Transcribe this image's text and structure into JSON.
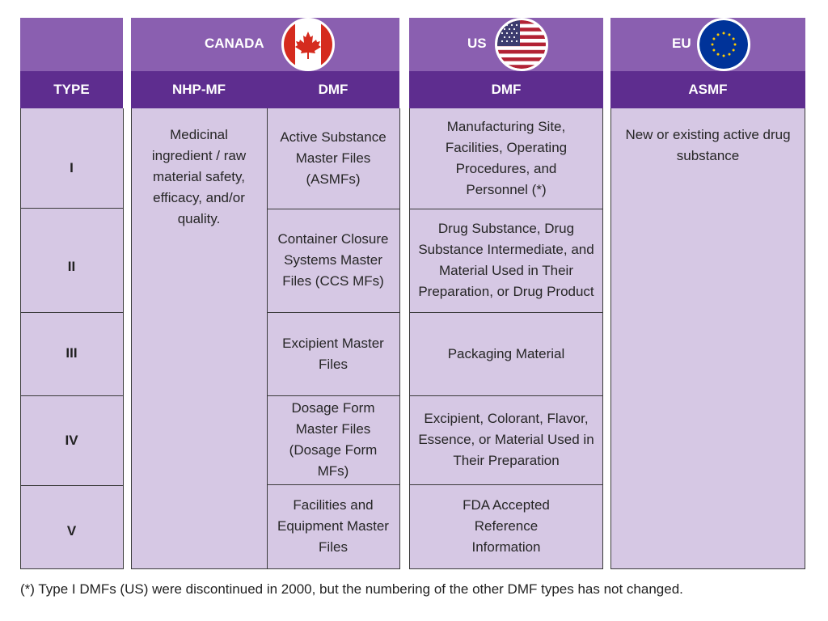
{
  "header": {
    "canada": "CANADA",
    "us": "US",
    "eu": "EU"
  },
  "subheader": {
    "type": "TYPE",
    "canada_nhp": "NHP-MF",
    "canada_dmf": "DMF",
    "us_dmf": "DMF",
    "eu_asmf": "ASMF"
  },
  "icons": {
    "canada": "canada-flag-icon",
    "us": "us-flag-icon",
    "eu": "eu-flag-icon"
  },
  "colors": {
    "header_light": "#8a5fb0",
    "header_dark": "#5e2d8f",
    "cell": "#d6c8e4"
  },
  "rows": [
    {
      "type": "I"
    },
    {
      "type": "II"
    },
    {
      "type": "III"
    },
    {
      "type": "IV"
    },
    {
      "type": "V"
    }
  ],
  "canada_nhp_text": "Medicinal ingredient / raw material safety, efficacy, and/or quality.",
  "canada_dmf": [
    "Active Substance Master Files (ASMFs)",
    "Container Closure Systems Master Files (CCS MFs)",
    "Excipient Master Files",
    "Dosage Form Master Files (Dosage Form MFs)",
    "Facilities and Equipment Master Files"
  ],
  "us_dmf": [
    "Manufacturing Site, Facilities, Operating Procedures, and Personnel (*)",
    "Drug Substance, Drug Substance Intermediate, and Material Used in Their Preparation, or Drug Product",
    "Packaging Material",
    "Excipient, Colorant, Flavor, Essence, or Material Used in Their Preparation",
    "FDA Accepted Reference Information"
  ],
  "eu_text": "New or existing active drug substance",
  "footnote": "(*) Type I DMFs (US) were discontinued in 2000, but the numbering of the other DMF types has not changed."
}
